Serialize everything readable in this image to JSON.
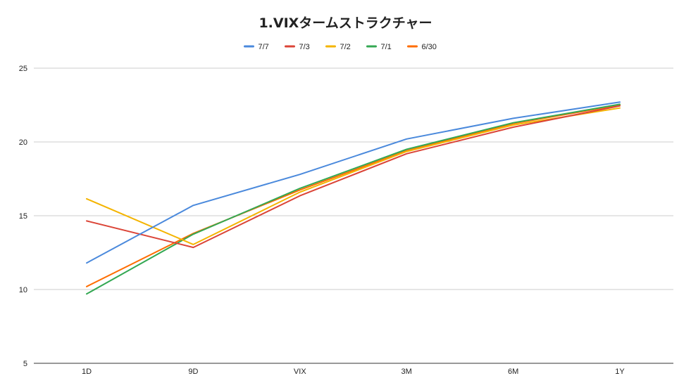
{
  "chart_data": {
    "type": "line",
    "title": "1.VIXタームストラクチャー",
    "xlabel": "",
    "ylabel": "",
    "categories": [
      "1D",
      "9D",
      "VIX",
      "3M",
      "6M",
      "1Y"
    ],
    "ylim": [
      5,
      25
    ],
    "yticks": [
      5,
      10,
      15,
      20,
      25
    ],
    "grid": true,
    "legend_position": "top",
    "series": [
      {
        "name": "7/7",
        "color": "#4a89dc",
        "values": [
          11.8,
          15.7,
          17.8,
          20.2,
          21.6,
          22.7
        ]
      },
      {
        "name": "7/3",
        "color": "#db4437",
        "values": [
          14.65,
          12.85,
          16.35,
          19.2,
          21.0,
          22.45
        ]
      },
      {
        "name": "7/2",
        "color": "#f4b400",
        "values": [
          16.15,
          13.05,
          16.6,
          19.35,
          21.15,
          22.3
        ]
      },
      {
        "name": "7/1",
        "color": "#34a853",
        "values": [
          9.7,
          13.75,
          16.85,
          19.5,
          21.3,
          22.55
        ]
      },
      {
        "name": "6/30",
        "color": "#ff6d01",
        "values": [
          10.2,
          13.8,
          16.75,
          19.4,
          21.25,
          22.5
        ]
      }
    ]
  }
}
